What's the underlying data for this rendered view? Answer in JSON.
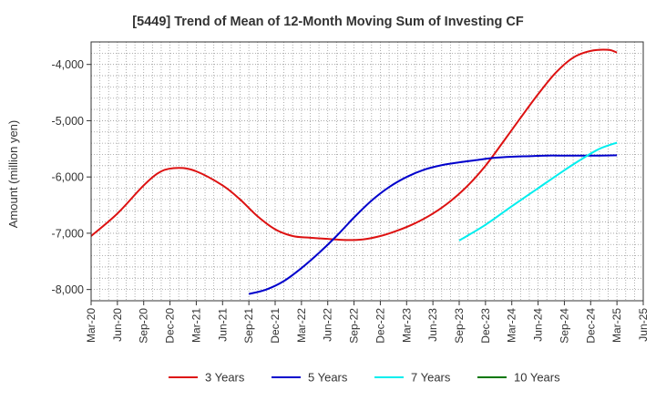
{
  "chart_data": {
    "type": "line",
    "title": "[5449]  Trend of Mean of 12-Month Moving Sum of Investing CF",
    "ylabel": "Amount (million yen)",
    "xlabel": "",
    "ylim": [
      -8200,
      -3600
    ],
    "yticks": [
      -8000,
      -7000,
      -6000,
      -5000,
      -4000
    ],
    "ytick_labels": [
      "-8,000",
      "-7,000",
      "-6,000",
      "-5,000",
      "-4,000"
    ],
    "x_start": "Mar-20",
    "x_end": "Jun-25",
    "total_months": 63,
    "xtick_labels": [
      "Mar-20",
      "Jun-20",
      "Sep-20",
      "Dec-20",
      "Mar-21",
      "Jun-21",
      "Sep-21",
      "Dec-21",
      "Mar-22",
      "Jun-22",
      "Sep-22",
      "Dec-22",
      "Mar-23",
      "Jun-23",
      "Sep-23",
      "Dec-23",
      "Mar-24",
      "Jun-24",
      "Sep-24",
      "Dec-24",
      "Mar-25",
      "Jun-25"
    ],
    "xtick_months": [
      0,
      3,
      6,
      9,
      12,
      15,
      18,
      21,
      24,
      27,
      30,
      33,
      36,
      39,
      42,
      45,
      48,
      51,
      54,
      57,
      60,
      63
    ],
    "grid": true,
    "legend_position": "bottom",
    "series": [
      {
        "name": "3 Years",
        "color": "#dd1111",
        "points": [
          [
            0,
            -7050
          ],
          [
            3,
            -6650
          ],
          [
            6,
            -6150
          ],
          [
            8,
            -5900
          ],
          [
            10,
            -5840
          ],
          [
            12,
            -5900
          ],
          [
            15,
            -6150
          ],
          [
            17,
            -6400
          ],
          [
            19,
            -6700
          ],
          [
            21,
            -6930
          ],
          [
            23,
            -7050
          ],
          [
            25,
            -7080
          ],
          [
            27,
            -7100
          ],
          [
            29,
            -7120
          ],
          [
            31,
            -7110
          ],
          [
            33,
            -7050
          ],
          [
            35,
            -6950
          ],
          [
            37,
            -6820
          ],
          [
            39,
            -6650
          ],
          [
            41,
            -6430
          ],
          [
            43,
            -6150
          ],
          [
            45,
            -5800
          ],
          [
            47,
            -5380
          ],
          [
            49,
            -4950
          ],
          [
            51,
            -4530
          ],
          [
            53,
            -4150
          ],
          [
            55,
            -3880
          ],
          [
            57,
            -3760
          ],
          [
            59,
            -3740
          ],
          [
            60,
            -3790
          ]
        ]
      },
      {
        "name": "5 Years",
        "color": "#0000cc",
        "points": [
          [
            18,
            -8080
          ],
          [
            20,
            -8000
          ],
          [
            22,
            -7850
          ],
          [
            24,
            -7620
          ],
          [
            26,
            -7350
          ],
          [
            28,
            -7050
          ],
          [
            30,
            -6720
          ],
          [
            32,
            -6420
          ],
          [
            34,
            -6180
          ],
          [
            36,
            -6000
          ],
          [
            38,
            -5870
          ],
          [
            40,
            -5790
          ],
          [
            42,
            -5740
          ],
          [
            44,
            -5700
          ],
          [
            46,
            -5660
          ],
          [
            48,
            -5640
          ],
          [
            50,
            -5630
          ],
          [
            52,
            -5620
          ],
          [
            54,
            -5620
          ],
          [
            56,
            -5620
          ],
          [
            58,
            -5620
          ],
          [
            60,
            -5615
          ]
        ]
      },
      {
        "name": "7 Years",
        "color": "#00eeee",
        "points": [
          [
            42,
            -7130
          ],
          [
            45,
            -6850
          ],
          [
            48,
            -6520
          ],
          [
            51,
            -6200
          ],
          [
            54,
            -5880
          ],
          [
            56,
            -5680
          ],
          [
            58,
            -5500
          ],
          [
            60,
            -5390
          ]
        ]
      },
      {
        "name": "10 Years",
        "color": "#007700",
        "points": []
      }
    ]
  }
}
